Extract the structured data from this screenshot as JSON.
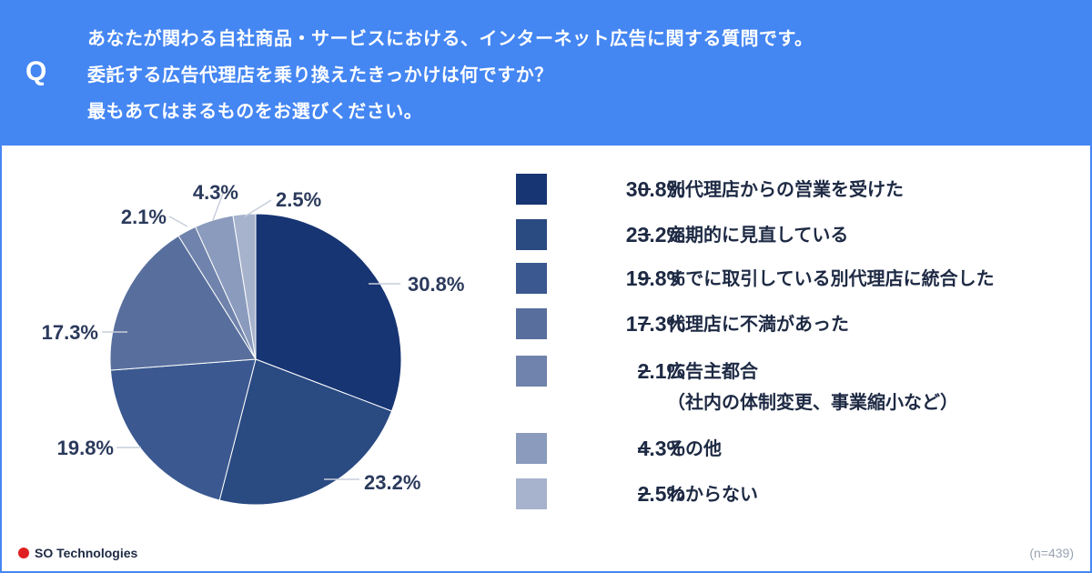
{
  "question": {
    "mark": "Q",
    "lines": [
      "あなたが関わる自社商品・サービスにおける、インターネット広告に関する質問です。",
      "委託する広告代理店を乗り換えたきっかけは何ですか？",
      "最もあてはまるものをお選びください。"
    ]
  },
  "chart_data": {
    "type": "pie",
    "categories": [
      "別代理店からの営業を受けた",
      "定期的に見直している",
      "すでに取引している別代理店に統合した",
      "代理店に不満があった",
      "広告主都合（社内の体制変更、事業縮小など）",
      "その他",
      "わからない"
    ],
    "values": [
      30.8,
      23.2,
      19.8,
      17.3,
      2.1,
      4.3,
      2.5
    ],
    "value_labels": [
      "30.8%",
      "23.2%",
      "19.8%",
      "17.3%",
      "2.1%",
      "4.3%",
      "2.5%"
    ],
    "colors": [
      "#173573",
      "#2a4a82",
      "#3b5990",
      "#586f9e",
      "#7083ac",
      "#8a9bbd",
      "#a7b3cd"
    ],
    "start": "top, clockwise",
    "legend": [
      {
        "pct": "30.8%",
        "label": "別代理店からの営業を受けた"
      },
      {
        "pct": "23.2%",
        "label": "定期的に見直している"
      },
      {
        "pct": "19.8%",
        "label": "すでに取引している別代理店に統合した"
      },
      {
        "pct": "17.3%",
        "label": "代理店に不満があった"
      },
      {
        "pct": "2.1%",
        "label": "広告主都合",
        "sublabel": "（社内の体制変更、事業縮小など）"
      },
      {
        "pct": "4.3%",
        "label": "その他"
      },
      {
        "pct": "2.5%",
        "label": "わからない"
      }
    ],
    "legend_position": "right"
  },
  "footer": {
    "brand": "SO Technologies",
    "sample_size": "(n=439)"
  }
}
